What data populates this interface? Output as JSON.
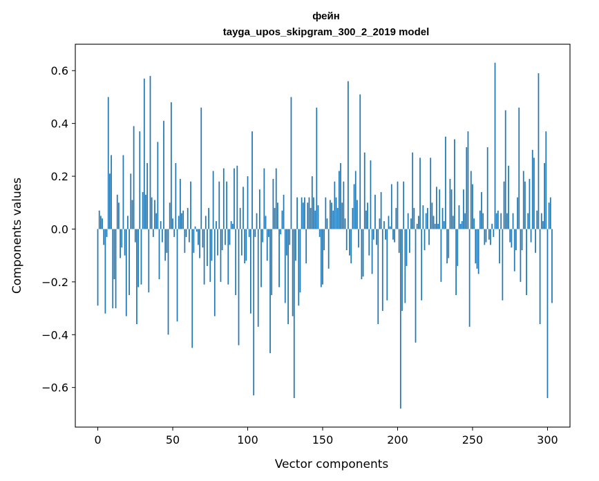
{
  "chart_data": {
    "type": "bar",
    "title": "фейн",
    "subtitle": "tayga_upos_skipgram_300_2_2019 model",
    "xlabel": "Vector components",
    "ylabel": "Components values",
    "xlim": [
      -15,
      315
    ],
    "ylim": [
      -0.75,
      0.7
    ],
    "xticks": [
      0,
      50,
      100,
      150,
      200,
      250,
      300
    ],
    "xtick_labels": [
      "0",
      "50",
      "100",
      "150",
      "200",
      "250",
      "300"
    ],
    "yticks": [
      -0.6,
      -0.4,
      -0.2,
      0.0,
      0.2,
      0.4,
      0.6
    ],
    "ytick_labels": [
      "−0.6",
      "−0.4",
      "−0.2",
      "0.0",
      "0.2",
      "0.4",
      "0.6"
    ],
    "bar_color": "#1f77b4",
    "grid": false,
    "values": [
      -0.29,
      0.07,
      0.05,
      0.04,
      -0.06,
      -0.32,
      -0.03,
      0.5,
      0.21,
      0.28,
      -0.3,
      -0.19,
      -0.3,
      0.13,
      0.1,
      -0.11,
      -0.07,
      0.28,
      -0.1,
      -0.33,
      0.05,
      -0.25,
      0.21,
      0.11,
      0.39,
      -0.05,
      -0.36,
      -0.22,
      0.37,
      -0.21,
      0.14,
      0.57,
      0.13,
      0.25,
      -0.24,
      0.58,
      0.12,
      -0.03,
      0.11,
      0.06,
      0.33,
      -0.19,
      0.03,
      -0.05,
      0.41,
      -0.12,
      -0.09,
      -0.4,
      0.1,
      0.48,
      0.04,
      -0.03,
      0.25,
      -0.35,
      0.05,
      0.19,
      0.06,
      0.07,
      -0.09,
      -0.03,
      0.08,
      -0.05,
      0.18,
      -0.45,
      -0.09,
      0.01,
      -0.01,
      -0.06,
      -0.11,
      0.46,
      -0.07,
      -0.21,
      0.05,
      -0.14,
      0.08,
      -0.2,
      -0.12,
      0.22,
      -0.33,
      0.03,
      -0.1,
      0.18,
      -0.2,
      -0.08,
      0.23,
      -0.06,
      0.18,
      -0.21,
      -0.06,
      0.03,
      0.02,
      0.23,
      -0.25,
      0.24,
      -0.44,
      0.08,
      -0.1,
      0.16,
      -0.13,
      -0.12,
      0.2,
      -0.03,
      -0.32,
      0.37,
      -0.63,
      -0.03,
      0.06,
      -0.37,
      0.15,
      -0.22,
      -0.05,
      0.23,
      0.05,
      -0.12,
      -0.03,
      -0.47,
      -0.25,
      0.19,
      0.08,
      0.23,
      0.1,
      -0.22,
      -0.02,
      0.07,
      0.13,
      -0.28,
      -0.1,
      -0.36,
      -0.06,
      0.5,
      -0.33,
      -0.64,
      -0.12,
      0.12,
      -0.29,
      -0.24,
      0.12,
      0.1,
      0.12,
      -0.13,
      0.1,
      0.12,
      0.08,
      0.2,
      0.12,
      0.07,
      0.46,
      0.09,
      -0.03,
      -0.22,
      -0.21,
      -0.08,
      0.12,
      0.04,
      -0.15,
      0.11,
      0.1,
      0.07,
      0.18,
      0.12,
      0.08,
      0.22,
      0.25,
      0.1,
      0.18,
      0.04,
      -0.08,
      0.56,
      -0.1,
      -0.13,
      0.08,
      0.17,
      0.22,
      0.11,
      -0.07,
      0.51,
      -0.19,
      -0.18,
      0.29,
      0.07,
      0.1,
      -0.1,
      0.26,
      -0.17,
      -0.04,
      0.13,
      -0.06,
      -0.36,
      0.04,
      0.14,
      -0.31,
      0.03,
      -0.04,
      -0.27,
      0.05,
      0.01,
      0.17,
      -0.04,
      -0.05,
      0.08,
      0.18,
      -0.09,
      -0.68,
      -0.31,
      0.18,
      -0.28,
      -0.14,
      0.06,
      -0.09,
      0.04,
      0.29,
      0.08,
      -0.43,
      0.02,
      0.05,
      0.27,
      -0.27,
      0.09,
      -0.08,
      0.06,
      0.08,
      -0.06,
      0.27,
      0.1,
      0.05,
      0.02,
      0.16,
      0.02,
      0.15,
      -0.2,
      0.08,
      0.03,
      0.35,
      -0.13,
      -0.11,
      0.19,
      0.15,
      0.05,
      0.34,
      -0.25,
      -0.14,
      0.09,
      0.02,
      0.03,
      0.15,
      0.06,
      0.31,
      0.37,
      -0.37,
      0.22,
      0.17,
      0.04,
      -0.13,
      -0.15,
      -0.17,
      0.07,
      0.14,
      0.06,
      -0.06,
      -0.05,
      0.31,
      -0.04,
      -0.06,
      0.02,
      -0.03,
      0.63,
      0.06,
      0.07,
      -0.13,
      0.06,
      -0.27,
      0.18,
      0.45,
      0.06,
      0.24,
      -0.05,
      -0.07,
      0.06,
      -0.16,
      -0.08,
      0.12,
      0.46,
      -0.2,
      -0.08,
      0.22,
      0.18,
      -0.25,
      0.06,
      0.19,
      -0.05,
      0.3,
      0.27,
      -0.09,
      0.07,
      0.59,
      -0.36,
      0.06,
      0.03,
      0.25,
      0.37,
      -0.64,
      0.1,
      0.12,
      -0.28
    ]
  }
}
